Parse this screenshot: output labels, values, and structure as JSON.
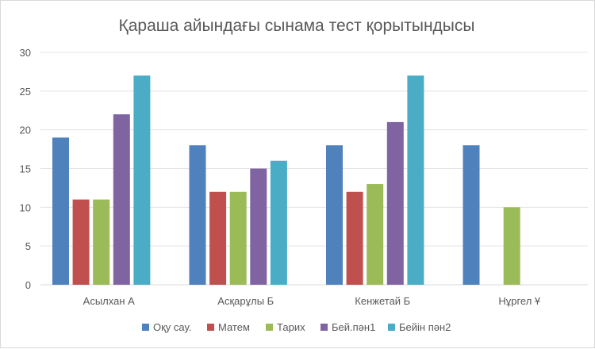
{
  "chart_data": {
    "type": "bar",
    "title": "Қараша айындағы сынама тест қорытындысы",
    "categories": [
      "Асылхан А",
      "Асқарұлы Б",
      "Кенжетай Б",
      "Нұргел Ұ"
    ],
    "series": [
      {
        "name": "Оқу сау.",
        "color": "#4f81bd",
        "values": [
          19,
          18,
          18,
          18
        ]
      },
      {
        "name": "Матем",
        "color": "#c0504d",
        "values": [
          11,
          12,
          12,
          null
        ]
      },
      {
        "name": "Тарих",
        "color": "#9bbb59",
        "values": [
          11,
          12,
          13,
          10
        ]
      },
      {
        "name": "Бей.пән1",
        "color": "#8064a2",
        "values": [
          22,
          15,
          21,
          null
        ]
      },
      {
        "name": "Бейін пән2",
        "color": "#4bacc6",
        "values": [
          27,
          16,
          27,
          null
        ]
      }
    ],
    "yticks": [
      "0",
      "5",
      "10",
      "15",
      "20",
      "25",
      "30"
    ],
    "ylim": [
      0,
      30
    ],
    "xlabel": "",
    "ylabel": "",
    "legend_position": "bottom",
    "grid": true
  }
}
